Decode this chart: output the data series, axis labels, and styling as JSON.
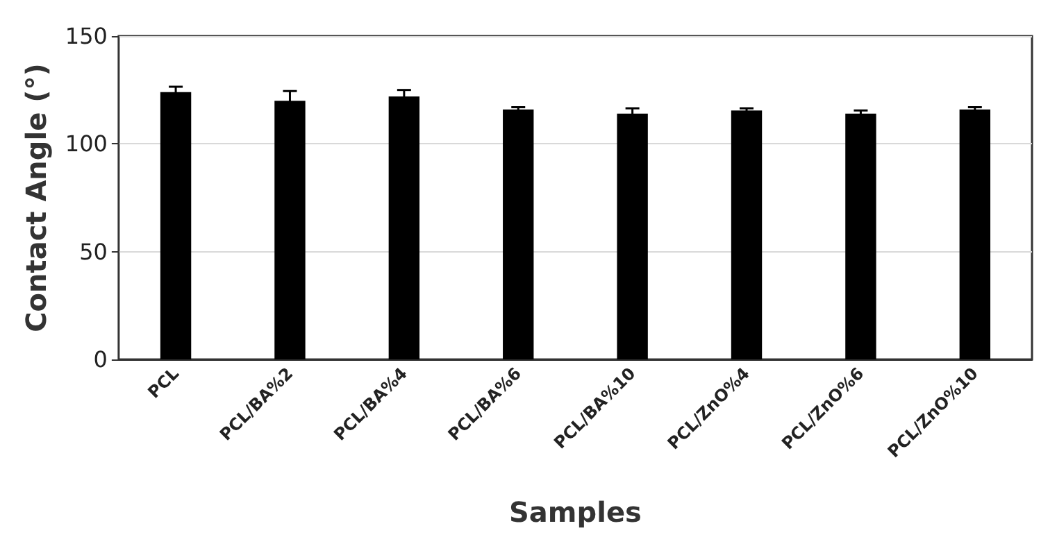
{
  "chart_data": {
    "type": "bar",
    "xlabel": "Samples",
    "ylabel": "Contact Angle (°)",
    "categories": [
      "PCL",
      "PCL/BA%2",
      "PCL/BA%4",
      "PCL/BA%6",
      "PCL/BA%10",
      "PCL/ZnO%4",
      "PCL/ZnO%6",
      "PCL/ZnO%10"
    ],
    "values": [
      124,
      120,
      122,
      116,
      114,
      115.5,
      114,
      116
    ],
    "errors": [
      2.5,
      4.5,
      3,
      1,
      2.5,
      1,
      1.5,
      1
    ],
    "color": "#000000",
    "ylim": [
      0,
      150
    ],
    "yticks": [
      0,
      50,
      100,
      150
    ],
    "grid": "y"
  }
}
